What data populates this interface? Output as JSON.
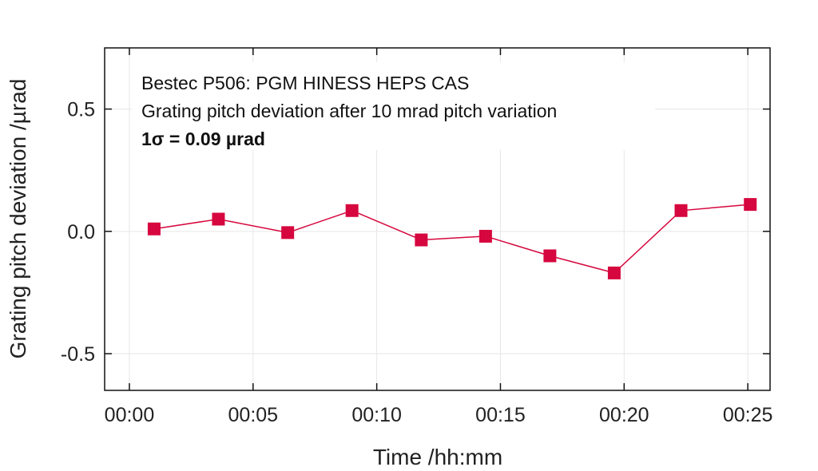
{
  "chart_data": {
    "type": "line",
    "xlabel": "Time /hh:mm",
    "ylabel": "Grating pitch deviation /µrad",
    "x_ticks": [
      {
        "value": 0,
        "label": "00:00"
      },
      {
        "value": 5,
        "label": "00:05"
      },
      {
        "value": 10,
        "label": "00:10"
      },
      {
        "value": 15,
        "label": "00:15"
      },
      {
        "value": 20,
        "label": "00:20"
      },
      {
        "value": 25,
        "label": "00:25"
      }
    ],
    "y_ticks": [
      {
        "value": 0.5,
        "label": "0.5"
      },
      {
        "value": 0.0,
        "label": "0.0"
      },
      {
        "value": -0.5,
        "label": "-0.5"
      }
    ],
    "xlim": [
      -1.0,
      25.9
    ],
    "ylim": [
      -0.65,
      0.75
    ],
    "grid": true,
    "annotations": [
      {
        "text": "Bestec P506: PGM HINESS HEPS CAS",
        "bold": false
      },
      {
        "text": "Grating pitch deviation after 10 mrad pitch variation",
        "bold": false
      },
      {
        "text": "1σ = 0.09 µrad",
        "bold": true
      }
    ],
    "series": [
      {
        "color": "#d6073e",
        "x": [
          1.0,
          3.6,
          6.4,
          9.0,
          11.8,
          14.4,
          17.0,
          19.6,
          22.3,
          25.1
        ],
        "y": [
          0.01,
          0.05,
          -0.005,
          0.085,
          -0.035,
          -0.02,
          -0.1,
          -0.17,
          0.085,
          0.11
        ]
      }
    ]
  }
}
